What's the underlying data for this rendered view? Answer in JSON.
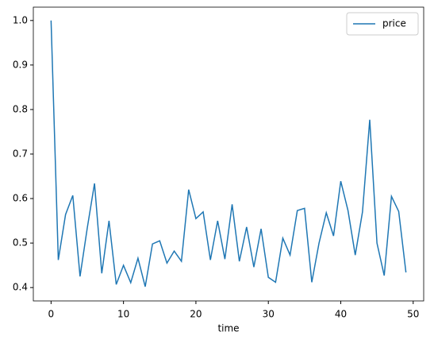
{
  "chart_data": {
    "type": "line",
    "xlabel": "time",
    "x": [
      0,
      1,
      2,
      3,
      4,
      5,
      6,
      7,
      8,
      9,
      10,
      11,
      12,
      13,
      14,
      15,
      16,
      17,
      18,
      19,
      20,
      21,
      22,
      23,
      24,
      25,
      26,
      27,
      28,
      29,
      30,
      31,
      32,
      33,
      34,
      35,
      36,
      37,
      38,
      39,
      40,
      41,
      42,
      43,
      44,
      45,
      46,
      47,
      48,
      49
    ],
    "series": [
      {
        "name": "price",
        "color": "#1f77b4",
        "values": [
          1.0,
          0.462,
          0.564,
          0.607,
          0.425,
          0.534,
          0.634,
          0.432,
          0.55,
          0.407,
          0.45,
          0.411,
          0.466,
          0.402,
          0.498,
          0.505,
          0.455,
          0.482,
          0.459,
          0.62,
          0.555,
          0.57,
          0.462,
          0.55,
          0.464,
          0.587,
          0.459,
          0.536,
          0.446,
          0.532,
          0.423,
          0.412,
          0.511,
          0.473,
          0.573,
          0.578,
          0.412,
          0.5,
          0.568,
          0.516,
          0.639,
          0.573,
          0.473,
          0.57,
          0.777,
          0.5,
          0.427,
          0.605,
          0.571,
          0.434
        ]
      }
    ],
    "xlim": [
      -2.45,
      51.45
    ],
    "xticks": [
      0,
      10,
      20,
      30,
      40,
      50
    ],
    "ylim": [
      0.37,
      1.03
    ],
    "yticks": [
      0.4,
      0.5,
      0.6,
      0.7,
      0.8,
      0.9,
      {
        "value": 1,
        "label": "1.0"
      }
    ],
    "legend": "upper right",
    "grid": false
  }
}
